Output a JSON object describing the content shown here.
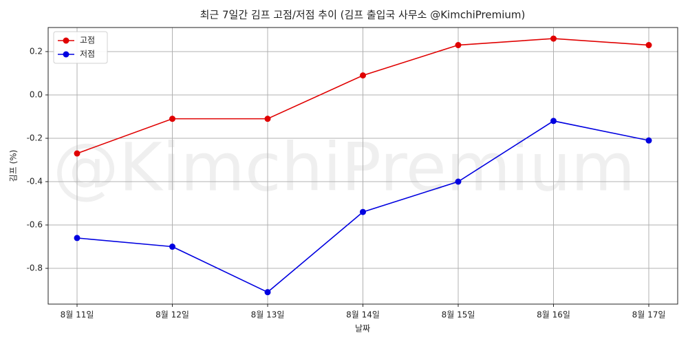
{
  "chart_data": {
    "type": "line",
    "title": "최근 7일간 김프 고점/저점 추이 (김프 출입국 사무소 @KimchiPremium)",
    "watermark": "@KimchiPremium",
    "xlabel": "날짜",
    "ylabel": "김프 (%)",
    "categories": [
      "8월 11일",
      "8월 12일",
      "8월 13일",
      "8월 14일",
      "8월 15일",
      "8월 16일",
      "8월 17일"
    ],
    "series": [
      {
        "name": "고점",
        "color": "#e00000",
        "values": [
          -0.27,
          -0.11,
          -0.11,
          0.09,
          0.23,
          0.26,
          0.23
        ]
      },
      {
        "name": "저점",
        "color": "#0000e0",
        "values": [
          -0.66,
          -0.7,
          -0.91,
          -0.54,
          -0.4,
          -0.12,
          -0.21
        ]
      }
    ],
    "ylim": [
      -0.965,
      0.311
    ],
    "yticks": [
      -0.8,
      -0.6,
      -0.4,
      -0.2,
      {
        "value": 0,
        "label": "0.0"
      },
      0.2
    ],
    "grid": true,
    "legend": "upper-left"
  }
}
